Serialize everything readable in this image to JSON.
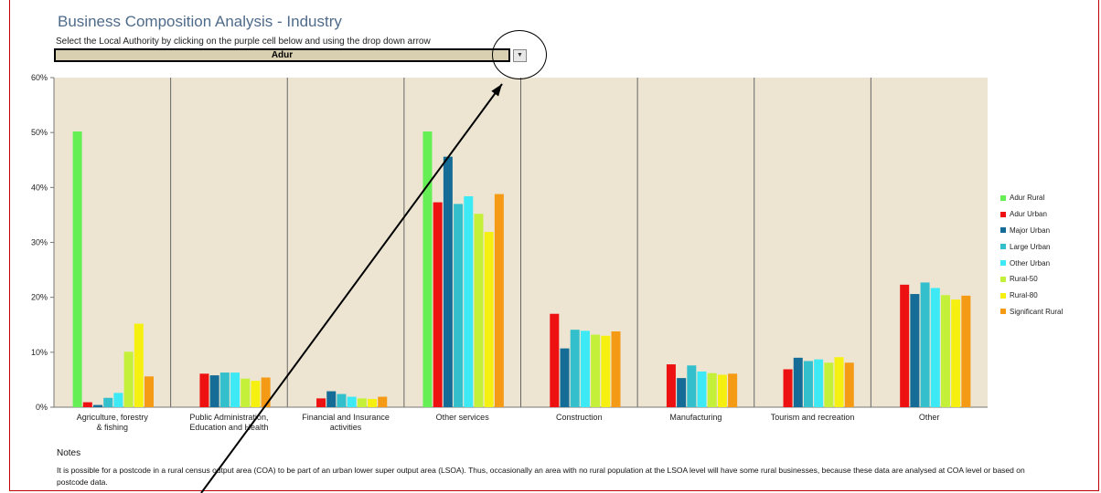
{
  "header": {
    "title": "Business Composition Analysis - Industry",
    "instruction": "Select the Local Authority by clicking on the purple cell below and using the drop down arrow",
    "selected_authority": "Adur",
    "dropdown_arrow_icon": "chevron-down-icon"
  },
  "notes": {
    "heading": "Notes",
    "text": "It is possible for a postcode in a rural census output area (COA) to be part of an urban lower super output area (LSOA). Thus, occasionally an area with no rural population at the LSOA level will have some rural businesses, because these data are analysed at COA level or based on postcode data."
  },
  "colors": {
    "plot_background": "#ede5d2",
    "frame_border": "#c00000"
  },
  "chart_data": {
    "type": "bar",
    "title": "",
    "xlabel": "",
    "ylabel": "",
    "ylim": [
      0,
      60
    ],
    "yticks": [
      "0%",
      "10%",
      "20%",
      "30%",
      "40%",
      "50%",
      "60%"
    ],
    "grid": false,
    "legend_position": "right",
    "categories": [
      "Agriculture, forestry & fishing",
      "Public Administration, Education and Health",
      "Financial and Insurance activities",
      "Other services",
      "Construction",
      "Manufacturing",
      "Tourism and recreation",
      "Other"
    ],
    "series": [
      {
        "name": "Adur Rural",
        "color": "#66ee55",
        "values": [
          50.2,
          0,
          0,
          50.2,
          0,
          0,
          0,
          0
        ]
      },
      {
        "name": "Adur Urban",
        "color": "#ee1111",
        "values": [
          0.9,
          6.1,
          1.6,
          37.3,
          17.0,
          7.8,
          6.9,
          22.3
        ]
      },
      {
        "name": "Major Urban",
        "color": "#156c96",
        "values": [
          0.4,
          5.8,
          2.9,
          45.6,
          10.7,
          5.3,
          9.0,
          20.6
        ]
      },
      {
        "name": "Large Urban",
        "color": "#33bfcc",
        "values": [
          1.7,
          6.3,
          2.4,
          37.0,
          14.1,
          7.6,
          8.4,
          22.7
        ]
      },
      {
        "name": "Other Urban",
        "color": "#3de9f4",
        "values": [
          2.6,
          6.3,
          1.9,
          38.4,
          13.9,
          6.5,
          8.7,
          21.7
        ]
      },
      {
        "name": "Rural-50",
        "color": "#c4f03a",
        "values": [
          10.1,
          5.2,
          1.6,
          35.2,
          13.2,
          6.2,
          8.1,
          20.4
        ]
      },
      {
        "name": "Rural-80",
        "color": "#f5f010",
        "values": [
          15.2,
          4.8,
          1.5,
          31.9,
          13.0,
          5.9,
          9.1,
          19.6
        ]
      },
      {
        "name": "Significant Rural",
        "color": "#f59a14",
        "values": [
          5.6,
          5.4,
          1.9,
          38.8,
          13.8,
          6.1,
          8.1,
          20.3
        ]
      }
    ]
  }
}
